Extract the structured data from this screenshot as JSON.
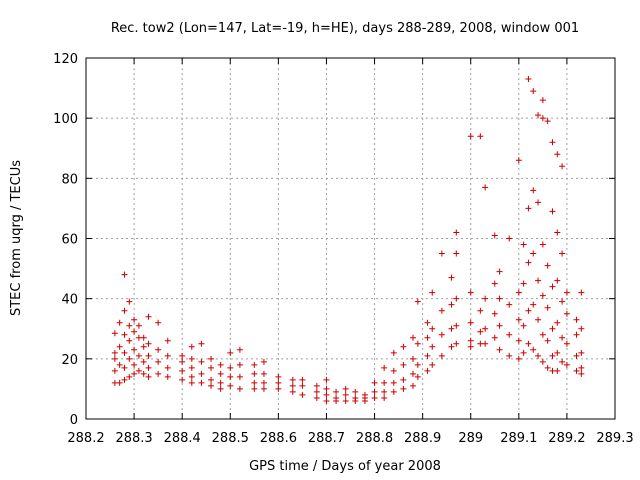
{
  "chart_data": {
    "type": "scatter",
    "title": "Rec. tow2 (Lon=147, Lat=-19, h=HE), days 288-289, 2008, window 001",
    "xlabel": "GPS time / Days of year 2008",
    "ylabel": "STEC from uqrg / TECUs",
    "xlim": [
      288.2,
      289.3
    ],
    "ylim": [
      0,
      120
    ],
    "xticks": [
      "288.2",
      "288.3",
      "288.4",
      "288.5",
      "288.6",
      "288.7",
      "288.8",
      "288.9",
      "289",
      "289.1",
      "289.2",
      "289.3"
    ],
    "yticks": [
      "0",
      "20",
      "40",
      "60",
      "80",
      "100",
      "120"
    ],
    "grid": true,
    "marker": "plus",
    "color": "#cc0000",
    "series": [
      {
        "points": [
          [
            288.26,
            28.5
          ],
          [
            288.26,
            22
          ],
          [
            288.26,
            20
          ],
          [
            288.26,
            16
          ],
          [
            288.26,
            12
          ],
          [
            288.27,
            32
          ],
          [
            288.27,
            24
          ],
          [
            288.27,
            18
          ],
          [
            288.27,
            12
          ],
          [
            288.28,
            48
          ],
          [
            288.28,
            36
          ],
          [
            288.28,
            28
          ],
          [
            288.28,
            22
          ],
          [
            288.28,
            17
          ],
          [
            288.28,
            13
          ],
          [
            288.29,
            39
          ],
          [
            288.29,
            31
          ],
          [
            288.29,
            26
          ],
          [
            288.29,
            20
          ],
          [
            288.29,
            14
          ],
          [
            288.3,
            33
          ],
          [
            288.3,
            29
          ],
          [
            288.3,
            23
          ],
          [
            288.3,
            18
          ],
          [
            288.3,
            15
          ],
          [
            288.31,
            31
          ],
          [
            288.31,
            27
          ],
          [
            288.31,
            21
          ],
          [
            288.31,
            16
          ],
          [
            288.32,
            27
          ],
          [
            288.32,
            24
          ],
          [
            288.32,
            19
          ],
          [
            288.32,
            15
          ],
          [
            288.33,
            34
          ],
          [
            288.33,
            25
          ],
          [
            288.33,
            21
          ],
          [
            288.33,
            17
          ],
          [
            288.33,
            14
          ],
          [
            288.35,
            32
          ],
          [
            288.35,
            23
          ],
          [
            288.35,
            19
          ],
          [
            288.35,
            15
          ],
          [
            288.37,
            26
          ],
          [
            288.37,
            21
          ],
          [
            288.37,
            17
          ],
          [
            288.37,
            14
          ],
          [
            288.4,
            21
          ],
          [
            288.4,
            19
          ],
          [
            288.4,
            16
          ],
          [
            288.4,
            13
          ],
          [
            288.42,
            24
          ],
          [
            288.42,
            20
          ],
          [
            288.42,
            17
          ],
          [
            288.42,
            14
          ],
          [
            288.42,
            12
          ],
          [
            288.44,
            25
          ],
          [
            288.44,
            19
          ],
          [
            288.44,
            15
          ],
          [
            288.44,
            12
          ],
          [
            288.46,
            20
          ],
          [
            288.46,
            17
          ],
          [
            288.46,
            13
          ],
          [
            288.46,
            11
          ],
          [
            288.48,
            18
          ],
          [
            288.48,
            15
          ],
          [
            288.48,
            12
          ],
          [
            288.48,
            10
          ],
          [
            288.5,
            22
          ],
          [
            288.5,
            17
          ],
          [
            288.5,
            14
          ],
          [
            288.5,
            11
          ],
          [
            288.52,
            23
          ],
          [
            288.52,
            18
          ],
          [
            288.52,
            14
          ],
          [
            288.52,
            10
          ],
          [
            288.55,
            18
          ],
          [
            288.55,
            15
          ],
          [
            288.55,
            12
          ],
          [
            288.55,
            10
          ],
          [
            288.57,
            19
          ],
          [
            288.57,
            15
          ],
          [
            288.57,
            12
          ],
          [
            288.57,
            10
          ],
          [
            288.6,
            14
          ],
          [
            288.6,
            12
          ],
          [
            288.6,
            10
          ],
          [
            288.63,
            13
          ],
          [
            288.63,
            11
          ],
          [
            288.63,
            9
          ],
          [
            288.65,
            13
          ],
          [
            288.65,
            11
          ],
          [
            288.65,
            8
          ],
          [
            288.68,
            11
          ],
          [
            288.68,
            9
          ],
          [
            288.68,
            7
          ],
          [
            288.7,
            13
          ],
          [
            288.7,
            10
          ],
          [
            288.7,
            8
          ],
          [
            288.7,
            6
          ],
          [
            288.72,
            9
          ],
          [
            288.72,
            7
          ],
          [
            288.72,
            6
          ],
          [
            288.74,
            10
          ],
          [
            288.74,
            8
          ],
          [
            288.74,
            6
          ],
          [
            288.76,
            9
          ],
          [
            288.76,
            7
          ],
          [
            288.76,
            6
          ],
          [
            288.78,
            8
          ],
          [
            288.78,
            7
          ],
          [
            288.78,
            6
          ],
          [
            288.8,
            12
          ],
          [
            288.8,
            9
          ],
          [
            288.8,
            7
          ],
          [
            288.82,
            17
          ],
          [
            288.82,
            12
          ],
          [
            288.82,
            9
          ],
          [
            288.82,
            7
          ],
          [
            288.84,
            22
          ],
          [
            288.84,
            16
          ],
          [
            288.84,
            12
          ],
          [
            288.84,
            9
          ],
          [
            288.86,
            24
          ],
          [
            288.86,
            18
          ],
          [
            288.86,
            13
          ],
          [
            288.86,
            10
          ],
          [
            288.88,
            27
          ],
          [
            288.88,
            20
          ],
          [
            288.88,
            15
          ],
          [
            288.88,
            11
          ],
          [
            288.89,
            39
          ],
          [
            288.89,
            25
          ],
          [
            288.89,
            18
          ],
          [
            288.89,
            14
          ],
          [
            288.91,
            32
          ],
          [
            288.91,
            27
          ],
          [
            288.91,
            21
          ],
          [
            288.91,
            16
          ],
          [
            288.92,
            42
          ],
          [
            288.92,
            30
          ],
          [
            288.92,
            24
          ],
          [
            288.92,
            18
          ],
          [
            288.94,
            55
          ],
          [
            288.94,
            36
          ],
          [
            288.94,
            28
          ],
          [
            288.94,
            21
          ],
          [
            288.96,
            47
          ],
          [
            288.96,
            38
          ],
          [
            288.96,
            30
          ],
          [
            288.96,
            24
          ],
          [
            288.97,
            62
          ],
          [
            288.97,
            55
          ],
          [
            288.97,
            40
          ],
          [
            288.97,
            31
          ],
          [
            288.97,
            25
          ],
          [
            289.0,
            94
          ],
          [
            289.0,
            42
          ],
          [
            289.0,
            32
          ],
          [
            289.0,
            26
          ],
          [
            289.0,
            24
          ],
          [
            289.02,
            94
          ],
          [
            289.02,
            36
          ],
          [
            289.02,
            29
          ],
          [
            289.02,
            25
          ],
          [
            289.03,
            77
          ],
          [
            289.03,
            40
          ],
          [
            289.03,
            30
          ],
          [
            289.03,
            25
          ],
          [
            289.05,
            61
          ],
          [
            289.05,
            45
          ],
          [
            289.05,
            35
          ],
          [
            289.05,
            27
          ],
          [
            289.06,
            49
          ],
          [
            289.06,
            40
          ],
          [
            289.06,
            31
          ],
          [
            289.06,
            23
          ],
          [
            289.08,
            60
          ],
          [
            289.08,
            38
          ],
          [
            289.08,
            28
          ],
          [
            289.08,
            21
          ],
          [
            289.1,
            86
          ],
          [
            289.1,
            42
          ],
          [
            289.1,
            33
          ],
          [
            289.1,
            26
          ],
          [
            289.1,
            20
          ],
          [
            289.11,
            58
          ],
          [
            289.11,
            45
          ],
          [
            289.11,
            31
          ],
          [
            289.11,
            22
          ],
          [
            289.12,
            113
          ],
          [
            289.12,
            70
          ],
          [
            289.12,
            52
          ],
          [
            289.12,
            36
          ],
          [
            289.12,
            25
          ],
          [
            289.13,
            109
          ],
          [
            289.13,
            76
          ],
          [
            289.13,
            55
          ],
          [
            289.13,
            38
          ],
          [
            289.13,
            23
          ],
          [
            289.14,
            101
          ],
          [
            289.14,
            72
          ],
          [
            289.14,
            46
          ],
          [
            289.14,
            33
          ],
          [
            289.14,
            21
          ],
          [
            289.15,
            106
          ],
          [
            289.15,
            100
          ],
          [
            289.15,
            58
          ],
          [
            289.15,
            41
          ],
          [
            289.15,
            28
          ],
          [
            289.15,
            19
          ],
          [
            289.16,
            99
          ],
          [
            289.16,
            51
          ],
          [
            289.16,
            37
          ],
          [
            289.16,
            26
          ],
          [
            289.16,
            17
          ],
          [
            289.17,
            92
          ],
          [
            289.17,
            69
          ],
          [
            289.17,
            44
          ],
          [
            289.17,
            30
          ],
          [
            289.17,
            21
          ],
          [
            289.17,
            16
          ],
          [
            289.18,
            88
          ],
          [
            289.18,
            62
          ],
          [
            289.18,
            46
          ],
          [
            289.18,
            32
          ],
          [
            289.18,
            22
          ],
          [
            289.18,
            16
          ],
          [
            289.19,
            84
          ],
          [
            289.19,
            55
          ],
          [
            289.19,
            39
          ],
          [
            289.19,
            27
          ],
          [
            289.19,
            19
          ],
          [
            289.2,
            42
          ],
          [
            289.2,
            35
          ],
          [
            289.2,
            25
          ],
          [
            289.2,
            18
          ],
          [
            289.22,
            33
          ],
          [
            289.22,
            28
          ],
          [
            289.22,
            21
          ],
          [
            289.22,
            16
          ],
          [
            289.23,
            42
          ],
          [
            289.23,
            30
          ],
          [
            289.23,
            22
          ],
          [
            289.23,
            17
          ],
          [
            289.23,
            15
          ]
        ]
      }
    ]
  }
}
